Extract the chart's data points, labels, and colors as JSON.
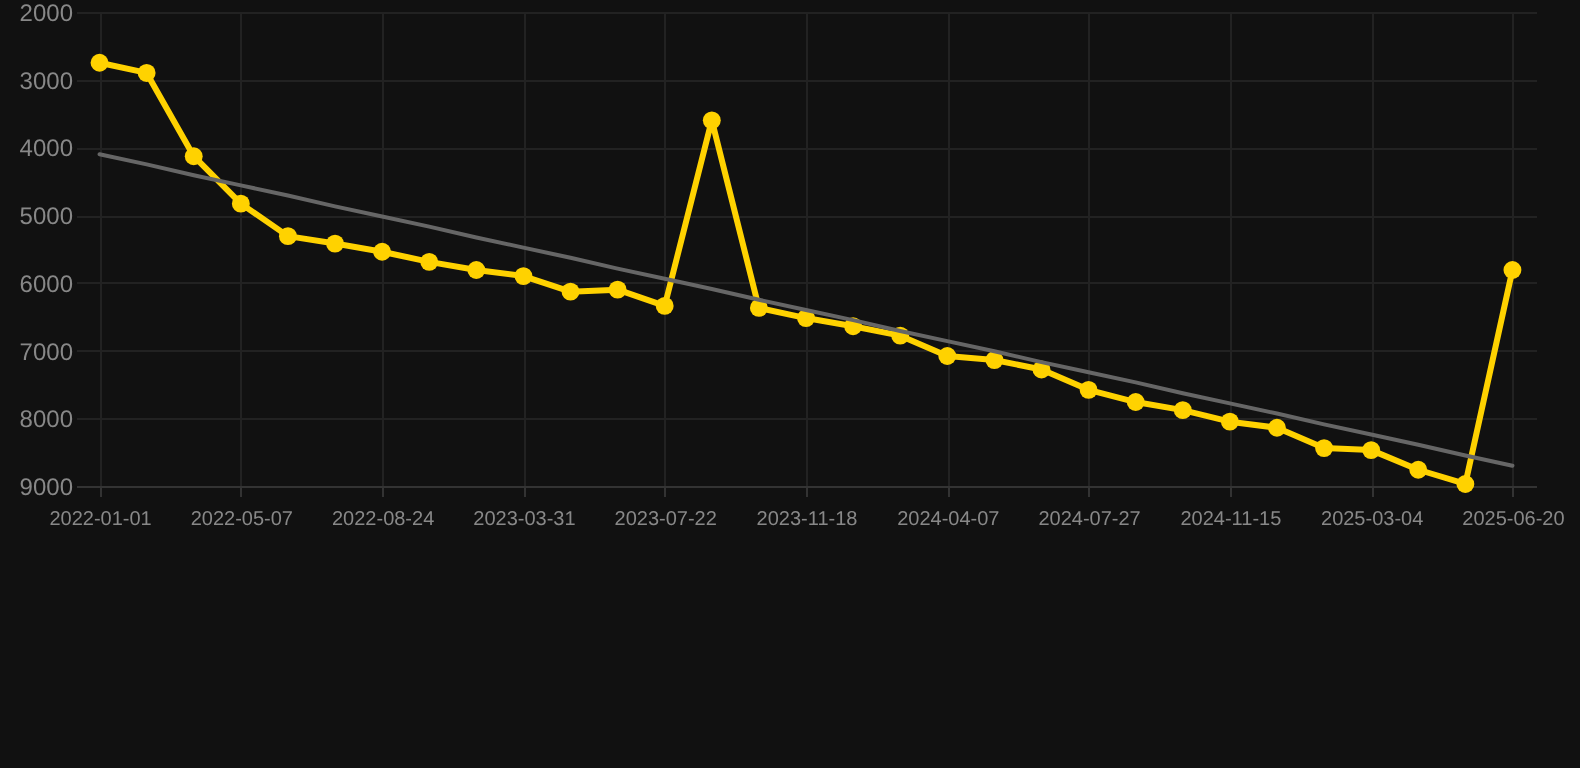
{
  "chart_data": {
    "type": "line",
    "categories": [
      "2022-01-01",
      null,
      null,
      "2022-05-07",
      null,
      null,
      "2022-08-24",
      null,
      null,
      "2023-03-31",
      null,
      null,
      "2023-07-22",
      null,
      null,
      "2023-11-18",
      null,
      null,
      "2024-04-07",
      null,
      null,
      "2024-07-27",
      null,
      null,
      "2024-11-15",
      null,
      null,
      "2025-03-04",
      null,
      null,
      "2025-06-20"
    ],
    "series": [
      {
        "color": "#ffd200",
        "marker": "circle",
        "values": [
          2750,
          2900,
          4130,
          4830,
          5310,
          5420,
          5540,
          5690,
          5810,
          5900,
          6130,
          6100,
          6340,
          3600,
          6370,
          6520,
          6640,
          6780,
          7080,
          7140,
          7280,
          7580,
          7760,
          7880,
          8050,
          8140,
          8440,
          8470,
          8760,
          8970,
          5810
        ]
      },
      {
        "type": "line",
        "color": "#666666",
        "marker": "none",
        "values": [
          4100,
          4250,
          4410,
          4560,
          4710,
          4870,
          5020,
          5170,
          5330,
          5480,
          5630,
          5790,
          5940,
          6090,
          6250,
          6400,
          6550,
          6710,
          6860,
          7010,
          7170,
          7320,
          7470,
          7630,
          7780,
          7930,
          8090,
          8240,
          8390,
          8550,
          8700
        ]
      }
    ],
    "ylim": [
      9000,
      2000
    ],
    "yticks": [
      2000,
      3000,
      4000,
      5000,
      6000,
      7000,
      8000,
      9000
    ],
    "grid": true
  }
}
